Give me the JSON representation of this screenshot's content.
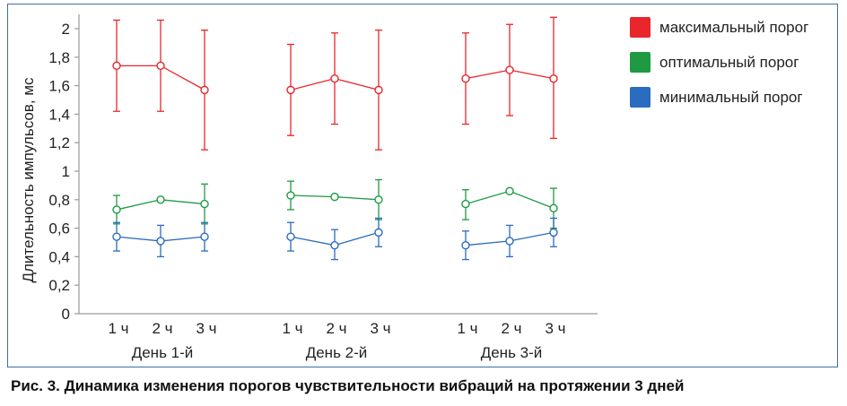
{
  "caption": "Рис. 3. Динамика изменения порогов чувствительности вибраций на протяжении 3 дней",
  "chart_data": {
    "type": "line",
    "ylabel": "Длительность импульсов, мс",
    "xlabel": "",
    "ylim": [
      0,
      2
    ],
    "yticks": [
      0,
      0.2,
      0.4,
      0.6,
      0.8,
      1,
      1.2,
      1.4,
      1.6,
      1.8,
      2
    ],
    "ytick_labels": [
      "0",
      "0,2",
      "0,4",
      "0,6",
      "0,8",
      "1",
      "1,2",
      "1,4",
      "1,6",
      "1,8",
      "2"
    ],
    "grid": false,
    "legend_position": "top-right",
    "groups": [
      {
        "label": "День 1-й",
        "categories": [
          "1 ч",
          "2 ч",
          "3 ч"
        ]
      },
      {
        "label": "День 2-й",
        "categories": [
          "1 ч",
          "2 ч",
          "3 ч"
        ]
      },
      {
        "label": "День 3-й",
        "categories": [
          "1 ч",
          "2 ч",
          "3 ч"
        ]
      }
    ],
    "series": [
      {
        "name": "максимальный порог",
        "color": "#e8262b",
        "values": [
          [
            1.74,
            1.74,
            1.57
          ],
          [
            1.57,
            1.65,
            1.57
          ],
          [
            1.65,
            1.71,
            1.65
          ]
        ],
        "error_low": [
          [
            1.42,
            1.42,
            1.15
          ],
          [
            1.25,
            1.33,
            1.15
          ],
          [
            1.33,
            1.39,
            1.23
          ]
        ],
        "error_high": [
          [
            2.06,
            2.06,
            1.99
          ],
          [
            1.89,
            1.97,
            1.99
          ],
          [
            1.97,
            2.03,
            2.08
          ]
        ]
      },
      {
        "name": "оптимальный порог",
        "color": "#1f9a43",
        "values": [
          [
            0.73,
            0.8,
            0.77
          ],
          [
            0.83,
            0.82,
            0.8
          ],
          [
            0.77,
            0.86,
            0.74
          ]
        ],
        "error_low": [
          [
            0.63,
            0.8,
            0.63
          ],
          [
            0.73,
            0.82,
            0.66
          ],
          [
            0.66,
            0.86,
            0.6
          ]
        ],
        "error_high": [
          [
            0.83,
            0.8,
            0.91
          ],
          [
            0.93,
            0.82,
            0.94
          ],
          [
            0.87,
            0.86,
            0.88
          ]
        ]
      },
      {
        "name": "минимальный порог",
        "color": "#2a6cbf",
        "values": [
          [
            0.54,
            0.51,
            0.54
          ],
          [
            0.54,
            0.48,
            0.57
          ],
          [
            0.48,
            0.51,
            0.57
          ]
        ],
        "error_low": [
          [
            0.44,
            0.4,
            0.44
          ],
          [
            0.44,
            0.38,
            0.47
          ],
          [
            0.38,
            0.4,
            0.47
          ]
        ],
        "error_high": [
          [
            0.64,
            0.62,
            0.64
          ],
          [
            0.64,
            0.59,
            0.67
          ],
          [
            0.58,
            0.62,
            0.67
          ]
        ]
      }
    ]
  }
}
